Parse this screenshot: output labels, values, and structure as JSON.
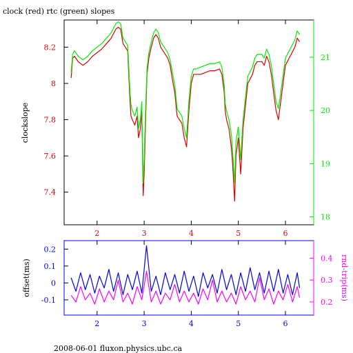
{
  "footer": "2008-06-01 fluxon.physics.ubc.ca",
  "colors": {
    "clock": "#dd0000",
    "rtc": "#00ee00",
    "offset": "#0000ee",
    "rtt": "#ff00ff",
    "axes": "#000000"
  },
  "chart_data": [
    {
      "type": "line",
      "title": "clock (red) rtc (green) slopes",
      "xlabel": "",
      "ylabel": "clockslope",
      "y2label": "",
      "xlim": [
        1.3,
        6.6
      ],
      "ylim": [
        7.22,
        8.35
      ],
      "y2lim": [
        17.85,
        21.7
      ],
      "xticks": [
        2,
        3,
        4,
        5,
        6
      ],
      "yticks": [
        7.4,
        7.6,
        7.8,
        8,
        8.2
      ],
      "yticklabels": [
        "7.4",
        "7.6",
        "7.8",
        "8",
        "8.2"
      ],
      "y2ticks": [
        18,
        19,
        20,
        21
      ],
      "grid": false,
      "series": [
        {
          "name": "clock",
          "axis": "left",
          "x": [
            1.45,
            1.48,
            1.52,
            1.6,
            1.7,
            1.8,
            1.9,
            2.0,
            2.1,
            2.2,
            2.3,
            2.4,
            2.45,
            2.5,
            2.55,
            2.6,
            2.65,
            2.7,
            2.72,
            2.75,
            2.8,
            2.85,
            2.88,
            2.92,
            2.95,
            2.98,
            3.0,
            3.03,
            3.06,
            3.1,
            3.15,
            3.2,
            3.25,
            3.3,
            3.35,
            3.4,
            3.45,
            3.5,
            3.55,
            3.6,
            3.65,
            3.7,
            3.75,
            3.8,
            3.85,
            3.9,
            3.95,
            4.0,
            4.05,
            4.1,
            4.2,
            4.3,
            4.4,
            4.5,
            4.6,
            4.65,
            4.7,
            4.72,
            4.75,
            4.8,
            4.85,
            4.88,
            4.92,
            4.95,
            5.0,
            5.05,
            5.1,
            5.2,
            5.3,
            5.35,
            5.4,
            5.45,
            5.5,
            5.55,
            5.6,
            5.65,
            5.7,
            5.75,
            5.8,
            5.85,
            5.9,
            6.0,
            6.1,
            6.2,
            6.25,
            6.3
          ],
          "values": [
            8.03,
            8.14,
            8.15,
            8.12,
            8.1,
            8.12,
            8.15,
            8.17,
            8.19,
            8.22,
            8.25,
            8.3,
            8.31,
            8.3,
            8.22,
            8.2,
            8.18,
            7.9,
            7.82,
            7.8,
            7.77,
            7.82,
            7.7,
            7.75,
            7.85,
            7.38,
            7.5,
            7.8,
            8.05,
            8.14,
            8.2,
            8.25,
            8.27,
            8.25,
            8.2,
            8.18,
            8.16,
            8.14,
            8.1,
            8.02,
            7.95,
            7.82,
            7.8,
            7.78,
            7.7,
            7.65,
            7.85,
            8.0,
            8.05,
            8.05,
            8.05,
            8.06,
            8.07,
            8.07,
            8.08,
            8.05,
            7.95,
            7.85,
            7.8,
            7.75,
            7.65,
            7.55,
            7.35,
            7.6,
            7.7,
            7.5,
            7.75,
            8.0,
            8.05,
            8.1,
            8.12,
            8.12,
            8.12,
            8.1,
            8.15,
            8.12,
            8.05,
            7.95,
            7.85,
            7.8,
            7.9,
            8.1,
            8.15,
            8.2,
            8.25,
            8.23
          ]
        },
        {
          "name": "rtc",
          "axis": "left",
          "x": [
            1.45,
            1.48,
            1.52,
            1.6,
            1.7,
            1.8,
            1.9,
            2.0,
            2.1,
            2.2,
            2.3,
            2.4,
            2.45,
            2.5,
            2.55,
            2.6,
            2.65,
            2.7,
            2.72,
            2.75,
            2.8,
            2.85,
            2.88,
            2.92,
            2.95,
            2.98,
            3.0,
            3.03,
            3.06,
            3.1,
            3.15,
            3.2,
            3.25,
            3.3,
            3.35,
            3.4,
            3.45,
            3.5,
            3.55,
            3.6,
            3.65,
            3.7,
            3.75,
            3.8,
            3.85,
            3.9,
            3.95,
            4.0,
            4.05,
            4.1,
            4.2,
            4.3,
            4.4,
            4.5,
            4.6,
            4.65,
            4.7,
            4.72,
            4.75,
            4.8,
            4.85,
            4.88,
            4.92,
            4.95,
            5.0,
            5.05,
            5.1,
            5.2,
            5.3,
            5.35,
            5.4,
            5.45,
            5.5,
            5.55,
            5.6,
            5.65,
            5.7,
            5.75,
            5.8,
            5.85,
            5.9,
            6.0,
            6.1,
            6.2,
            6.25,
            6.3
          ],
          "values": [
            8.06,
            8.16,
            8.18,
            8.15,
            8.13,
            8.15,
            8.18,
            8.2,
            8.22,
            8.25,
            8.28,
            8.33,
            8.34,
            8.33,
            8.25,
            8.23,
            8.21,
            7.95,
            7.88,
            7.85,
            7.82,
            7.87,
            7.75,
            7.8,
            7.9,
            7.45,
            7.58,
            7.86,
            8.08,
            8.17,
            8.23,
            8.28,
            8.3,
            8.28,
            8.23,
            8.21,
            8.19,
            8.17,
            8.13,
            8.06,
            7.99,
            7.86,
            7.84,
            7.82,
            7.75,
            7.7,
            7.9,
            8.04,
            8.08,
            8.08,
            8.09,
            8.1,
            8.11,
            8.11,
            8.12,
            8.09,
            7.99,
            7.89,
            7.85,
            7.8,
            7.72,
            7.62,
            7.45,
            7.68,
            7.76,
            7.58,
            7.8,
            8.04,
            8.09,
            8.14,
            8.16,
            8.16,
            8.16,
            8.14,
            8.19,
            8.16,
            8.1,
            8.0,
            7.9,
            7.86,
            7.95,
            8.14,
            8.19,
            8.24,
            8.29,
            8.27
          ]
        }
      ]
    },
    {
      "type": "line",
      "title": "",
      "xlabel": "",
      "ylabel": "offset(ms)",
      "y2label": "rnd-trip(ms)",
      "xlim": [
        1.3,
        6.6
      ],
      "ylim": [
        -0.19,
        0.25
      ],
      "y2lim": [
        0.14,
        0.48
      ],
      "xticks": [
        2,
        3,
        4,
        5,
        6
      ],
      "yticks": [
        -0.1,
        0,
        0.1,
        0.2
      ],
      "yticklabels": [
        "-0.1",
        "0",
        "0.1",
        "0.2"
      ],
      "y2ticks": [
        0.2,
        0.3,
        0.4
      ],
      "grid": false,
      "series": [
        {
          "name": "offset",
          "axis": "left",
          "x": [
            1.45,
            1.55,
            1.65,
            1.75,
            1.85,
            1.95,
            2.05,
            2.15,
            2.25,
            2.35,
            2.45,
            2.55,
            2.65,
            2.75,
            2.85,
            2.95,
            3.05,
            3.15,
            3.25,
            3.35,
            3.45,
            3.55,
            3.65,
            3.75,
            3.85,
            3.95,
            4.05,
            4.15,
            4.25,
            4.35,
            4.45,
            4.55,
            4.65,
            4.75,
            4.85,
            4.95,
            5.05,
            5.15,
            5.25,
            5.35,
            5.45,
            5.55,
            5.65,
            5.75,
            5.85,
            5.95,
            6.05,
            6.15,
            6.25,
            6.3
          ],
          "values": [
            0.03,
            -0.05,
            0.06,
            -0.04,
            0.05,
            -0.06,
            0.04,
            -0.03,
            0.08,
            -0.05,
            0.06,
            -0.07,
            0.05,
            -0.04,
            0.07,
            -0.06,
            0.22,
            -0.05,
            0.04,
            -0.07,
            0.06,
            -0.04,
            0.05,
            -0.06,
            0.07,
            -0.05,
            0.04,
            -0.08,
            0.06,
            -0.03,
            0.05,
            -0.06,
            0.08,
            -0.04,
            0.05,
            -0.07,
            0.06,
            -0.05,
            0.09,
            -0.04,
            0.06,
            -0.06,
            0.07,
            -0.05,
            0.08,
            -0.06,
            0.05,
            -0.07,
            0.06,
            -0.03
          ]
        },
        {
          "name": "rnd-trip",
          "axis": "right",
          "x": [
            1.45,
            1.55,
            1.65,
            1.75,
            1.85,
            1.95,
            2.05,
            2.15,
            2.25,
            2.35,
            2.45,
            2.55,
            2.65,
            2.75,
            2.85,
            2.95,
            3.05,
            3.15,
            3.25,
            3.35,
            3.45,
            3.55,
            3.65,
            3.75,
            3.85,
            3.95,
            4.05,
            4.15,
            4.25,
            4.35,
            4.45,
            4.55,
            4.65,
            4.75,
            4.85,
            4.95,
            5.05,
            5.15,
            5.25,
            5.35,
            5.45,
            5.55,
            5.65,
            5.75,
            5.85,
            5.95,
            6.05,
            6.15,
            6.25,
            6.3
          ],
          "values": [
            0.23,
            0.2,
            0.27,
            0.21,
            0.24,
            0.19,
            0.26,
            0.2,
            0.25,
            0.21,
            0.3,
            0.2,
            0.24,
            0.19,
            0.27,
            0.21,
            0.34,
            0.2,
            0.25,
            0.19,
            0.24,
            0.21,
            0.28,
            0.2,
            0.25,
            0.2,
            0.24,
            0.19,
            0.26,
            0.21,
            0.3,
            0.2,
            0.25,
            0.2,
            0.24,
            0.19,
            0.27,
            0.21,
            0.25,
            0.2,
            0.31,
            0.21,
            0.26,
            0.19,
            0.25,
            0.21,
            0.28,
            0.2,
            0.27,
            0.22
          ]
        }
      ]
    }
  ]
}
